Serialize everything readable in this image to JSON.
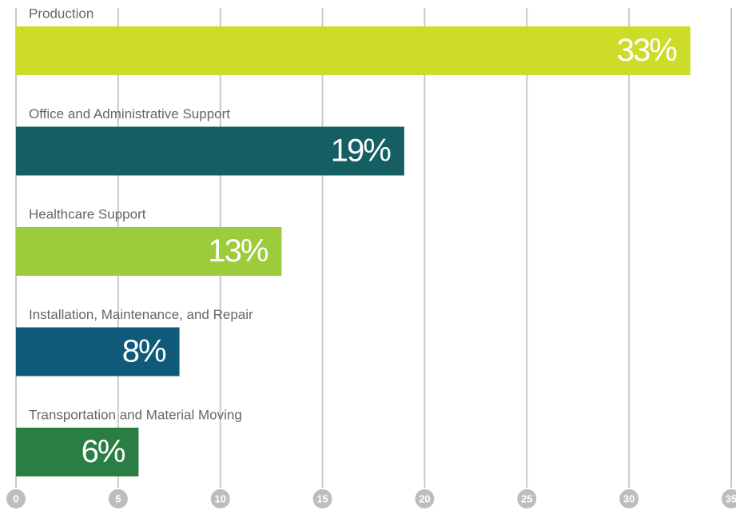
{
  "chart_data": {
    "type": "bar",
    "orientation": "horizontal",
    "categories": [
      "Production",
      "Office and Administrative Support",
      "Healthcare Support",
      "Installation, Maintenance, and Repair",
      "Transportation and Material Moving"
    ],
    "values": [
      33,
      19,
      13,
      8,
      6
    ],
    "value_labels": [
      "33%",
      "19%",
      "13%",
      "8%",
      "6%"
    ],
    "colors": [
      "#cddc29",
      "#155f63",
      "#9ccb3b",
      "#0e5a78",
      "#2a7e43"
    ],
    "xlim": [
      0,
      35
    ],
    "xticks": [
      0,
      5,
      10,
      15,
      20,
      25,
      30,
      35
    ],
    "grid": true
  }
}
